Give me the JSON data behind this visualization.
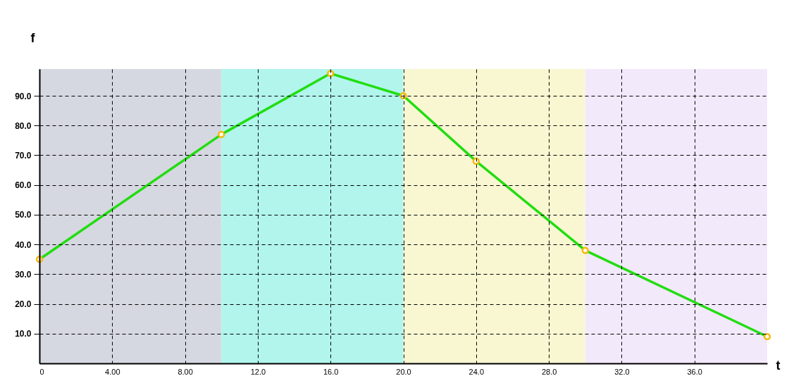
{
  "chart_data": {
    "type": "line",
    "xlabel": "t",
    "ylabel": "f",
    "x": [
      0,
      10,
      16,
      20,
      24,
      30,
      40
    ],
    "series": [
      {
        "color": "#22dd11",
        "values": [
          35,
          77,
          97.5,
          90,
          68,
          38,
          9
        ]
      }
    ],
    "xlim": [
      0,
      40
    ],
    "ylim": [
      0,
      99
    ],
    "xticks": [
      {
        "value": 0,
        "label": "0"
      },
      {
        "value": 4,
        "label": "4.00"
      },
      {
        "value": 8,
        "label": "8.00"
      },
      {
        "value": 12,
        "label": "12.0"
      },
      {
        "value": 16,
        "label": "16.0"
      },
      {
        "value": 20,
        "label": "20.0"
      },
      {
        "value": 24,
        "label": "24.0"
      },
      {
        "value": 28,
        "label": "28.0"
      },
      {
        "value": 32,
        "label": "32.0"
      },
      {
        "value": 36,
        "label": "36.0"
      }
    ],
    "yticks": [
      {
        "value": 10,
        "label": "10.0"
      },
      {
        "value": 20,
        "label": "20.0"
      },
      {
        "value": 30,
        "label": "30.0"
      },
      {
        "value": 40,
        "label": "40.0"
      },
      {
        "value": 50,
        "label": "50.0"
      },
      {
        "value": 60,
        "label": "60.0"
      },
      {
        "value": 70,
        "label": "70.0"
      },
      {
        "value": 80,
        "label": "80.0"
      },
      {
        "value": 90,
        "label": "90.0"
      }
    ],
    "bands": [
      {
        "axis": "x",
        "from": 0,
        "to": 10,
        "color": "#d6d8e1"
      },
      {
        "axis": "x",
        "from": 10,
        "to": 20,
        "color": "#b1f5ec"
      },
      {
        "axis": "x",
        "from": 20,
        "to": 30,
        "color": "#f8f7d2"
      },
      {
        "axis": "x",
        "from": 30,
        "to": 40,
        "color": "#f2e9fb"
      }
    ],
    "grid": true,
    "marker": "circle",
    "line_style": "solid"
  }
}
